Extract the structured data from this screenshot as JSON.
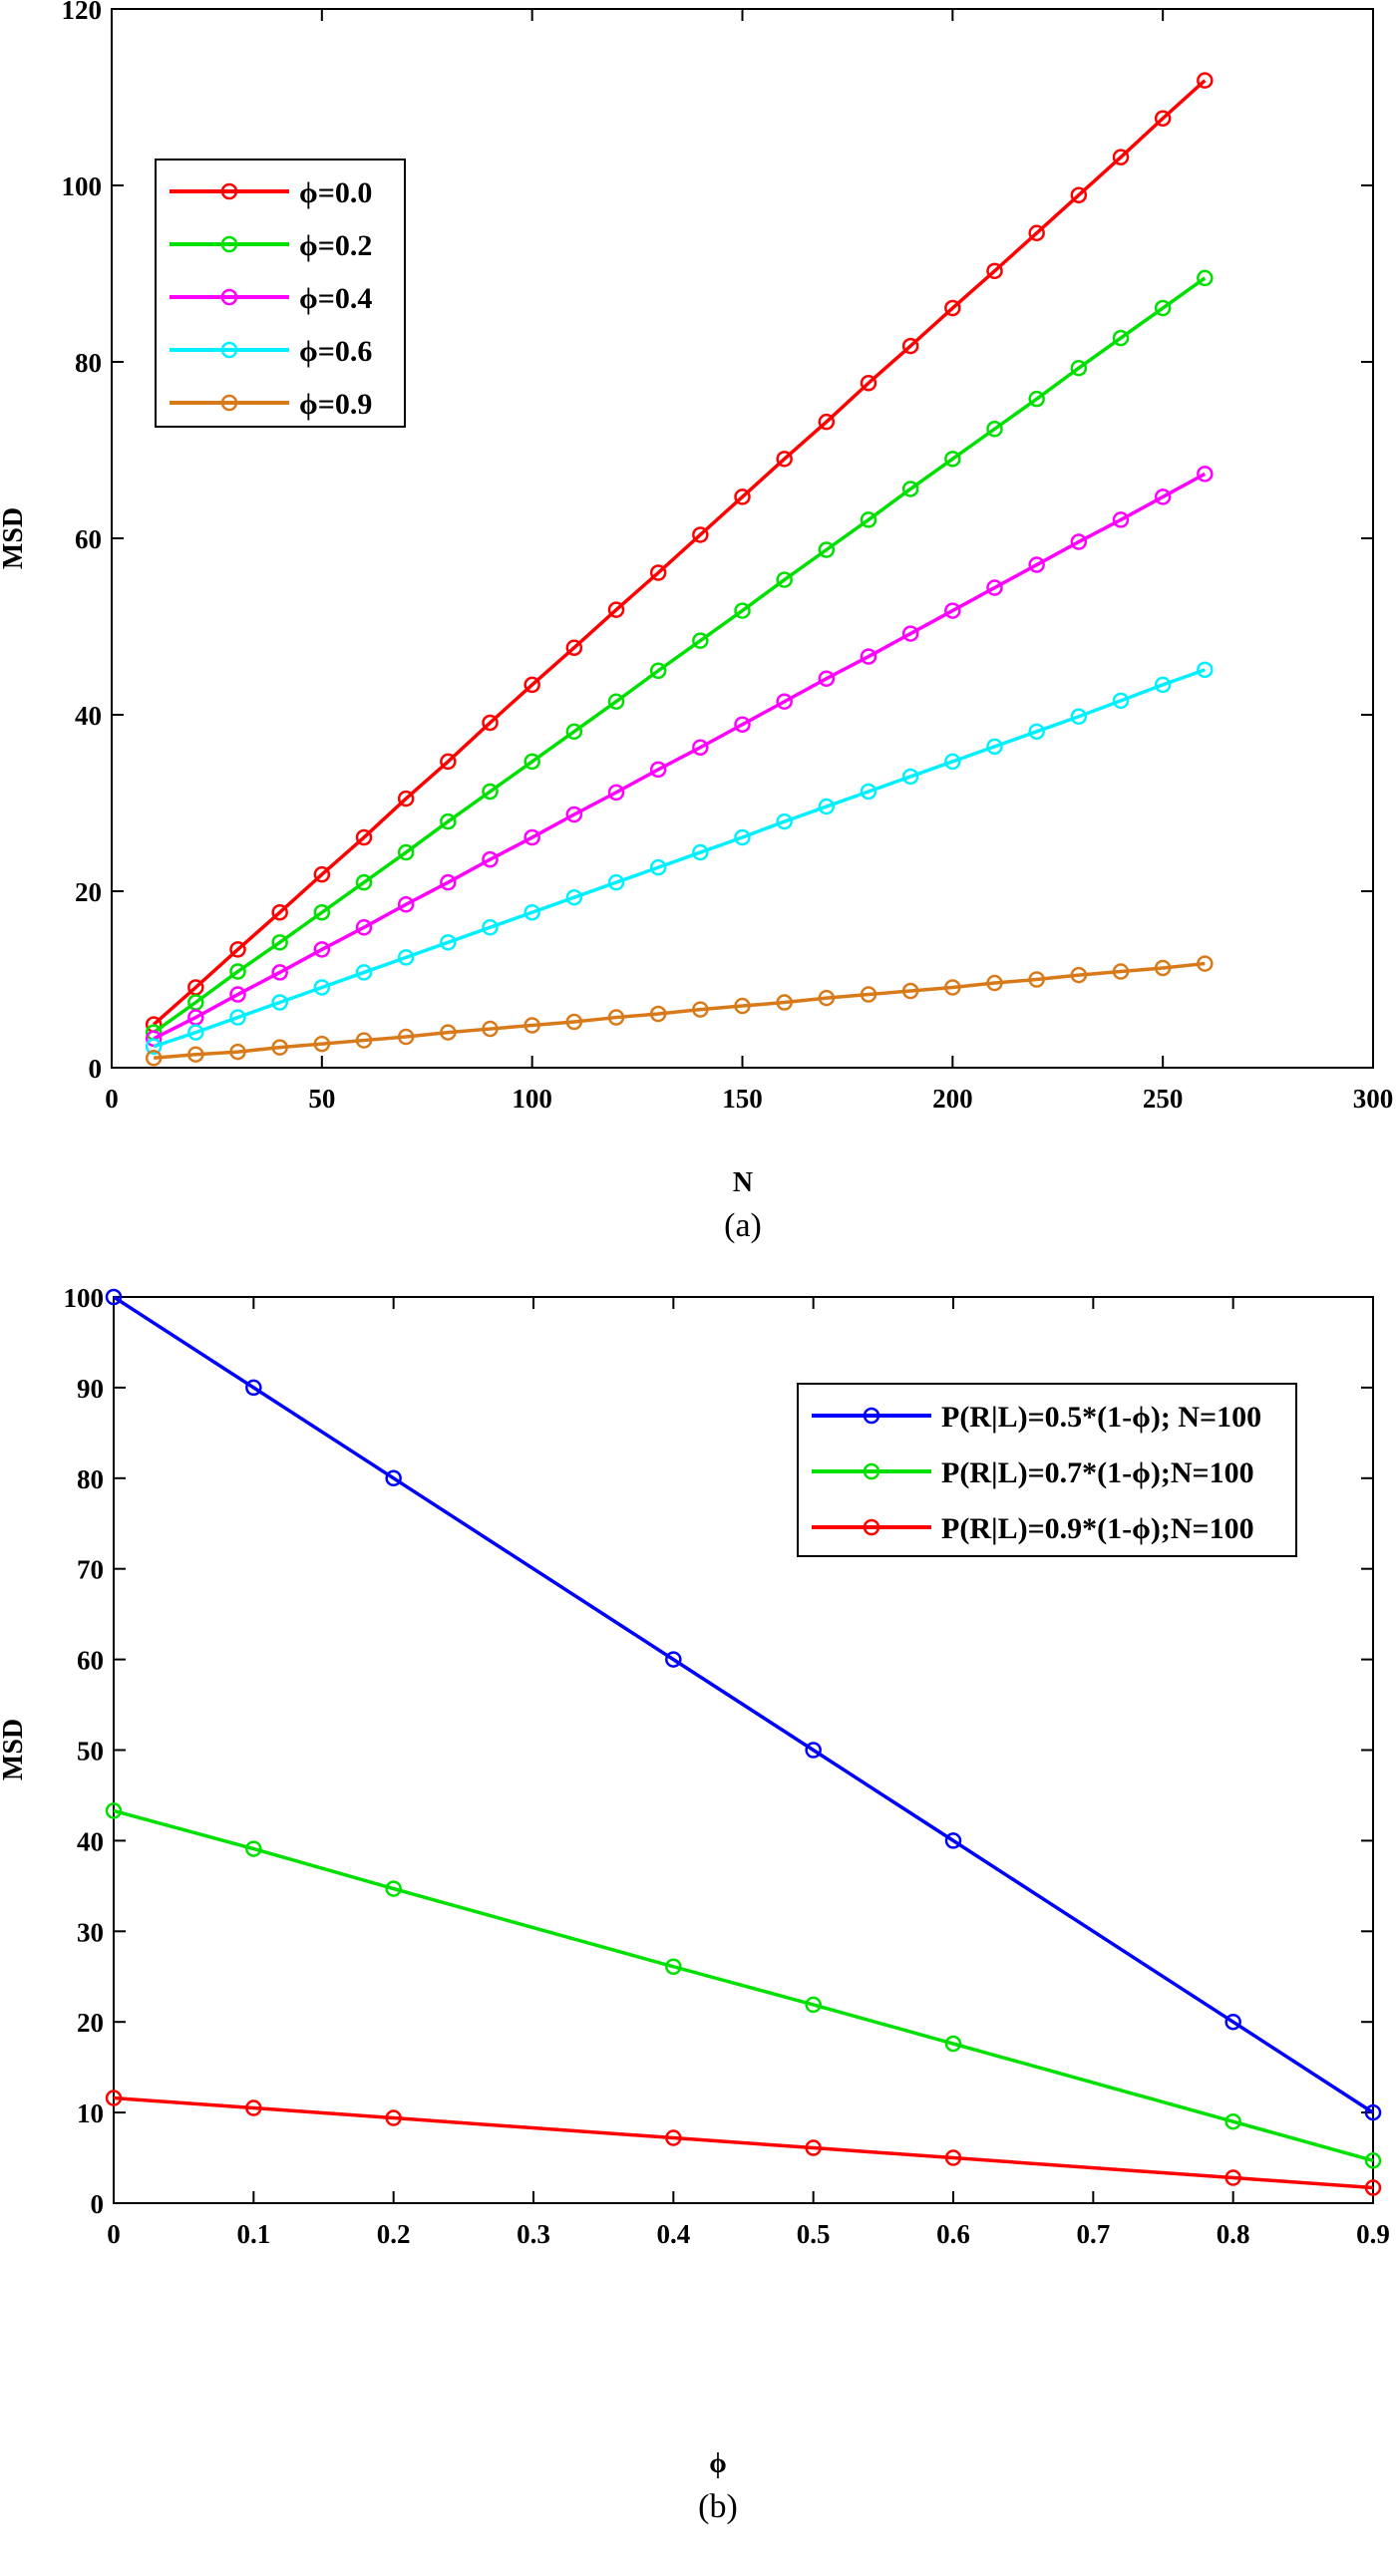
{
  "chart_data": [
    {
      "type": "line",
      "caption": "(a)",
      "xlabel": "N",
      "ylabel": "MSD",
      "xlim": [
        0,
        300
      ],
      "ylim": [
        0,
        120
      ],
      "xticks": [
        "0",
        "50",
        "100",
        "150",
        "200",
        "250",
        "300"
      ],
      "yticks": [
        "0",
        "20",
        "40",
        "60",
        "80",
        "100",
        "120"
      ],
      "legend_position": "upper-left",
      "grid": false,
      "x": [
        10,
        20,
        30,
        40,
        50,
        60,
        70,
        80,
        90,
        100,
        110,
        120,
        130,
        140,
        150,
        160,
        170,
        180,
        190,
        200,
        210,
        220,
        230,
        240,
        250,
        260
      ],
      "series": [
        {
          "name": "ϕ=0.0",
          "color": "#ff0000",
          "values": [
            4.9,
            9.1,
            13.4,
            17.6,
            21.9,
            26.1,
            30.5,
            34.7,
            39.1,
            43.4,
            47.6,
            51.9,
            56.1,
            60.4,
            64.7,
            69.0,
            73.2,
            77.6,
            81.8,
            86.1,
            90.3,
            94.6,
            98.9,
            103.2,
            107.6,
            111.9
          ]
        },
        {
          "name": "ϕ=0.2",
          "color": "#00e000",
          "values": [
            4.0,
            7.4,
            10.9,
            14.2,
            17.6,
            21.0,
            24.4,
            27.9,
            31.3,
            34.7,
            38.1,
            41.5,
            45.0,
            48.4,
            51.8,
            55.3,
            58.7,
            62.1,
            65.6,
            69.0,
            72.4,
            75.8,
            79.3,
            82.7,
            86.1,
            89.5
          ]
        },
        {
          "name": "ϕ=0.4",
          "color": "#ff00ff",
          "values": [
            3.3,
            5.7,
            8.3,
            10.8,
            13.4,
            15.9,
            18.5,
            21.0,
            23.6,
            26.1,
            28.7,
            31.2,
            33.8,
            36.3,
            38.9,
            41.5,
            44.1,
            46.6,
            49.2,
            51.8,
            54.4,
            57.0,
            59.6,
            62.1,
            64.7,
            67.3
          ]
        },
        {
          "name": "ϕ=0.6",
          "color": "#00f0ff",
          "values": [
            2.4,
            4.0,
            5.7,
            7.4,
            9.1,
            10.8,
            12.5,
            14.2,
            15.9,
            17.6,
            19.3,
            21.0,
            22.7,
            24.4,
            26.1,
            27.9,
            29.6,
            31.3,
            33.0,
            34.7,
            36.4,
            38.1,
            39.8,
            41.6,
            43.4,
            45.1
          ]
        },
        {
          "name": "ϕ=0.9",
          "color": "#d97a1a",
          "values": [
            1.1,
            1.5,
            1.8,
            2.3,
            2.7,
            3.1,
            3.5,
            4.0,
            4.4,
            4.8,
            5.2,
            5.7,
            6.1,
            6.6,
            7.0,
            7.4,
            7.9,
            8.3,
            8.7,
            9.1,
            9.6,
            10.0,
            10.5,
            10.9,
            11.3,
            11.8
          ]
        }
      ]
    },
    {
      "type": "line",
      "caption": "(b)",
      "xlabel": "ϕ",
      "ylabel": "MSD",
      "xlim": [
        0,
        0.9
      ],
      "ylim": [
        0,
        100
      ],
      "xticks": [
        "0",
        "0.1",
        "0.2",
        "0.3",
        "0.4",
        "0.5",
        "0.6",
        "0.7",
        "0.8",
        "0.9"
      ],
      "yticks": [
        "0",
        "10",
        "20",
        "30",
        "40",
        "50",
        "60",
        "70",
        "80",
        "90",
        "100"
      ],
      "legend_position": "upper-right",
      "grid": false,
      "x": [
        0,
        0.1,
        0.2,
        0.4,
        0.5,
        0.6,
        0.8,
        0.9
      ],
      "series": [
        {
          "name": "P(R|L)=0.5*(1-ϕ); N=100",
          "color": "#0000ff",
          "values": [
            100,
            90,
            80,
            60,
            50,
            40,
            20,
            10
          ]
        },
        {
          "name": "P(R|L)=0.7*(1-ϕ);N=100",
          "color": "#00e000",
          "values": [
            43.3,
            39.1,
            34.7,
            26.1,
            21.9,
            17.6,
            9.0,
            4.7
          ]
        },
        {
          "name": "P(R|L)=0.9*(1-ϕ);N=100",
          "color": "#ff0000",
          "values": [
            11.6,
            10.5,
            9.4,
            7.2,
            6.1,
            5.0,
            2.8,
            1.7
          ]
        }
      ]
    }
  ]
}
